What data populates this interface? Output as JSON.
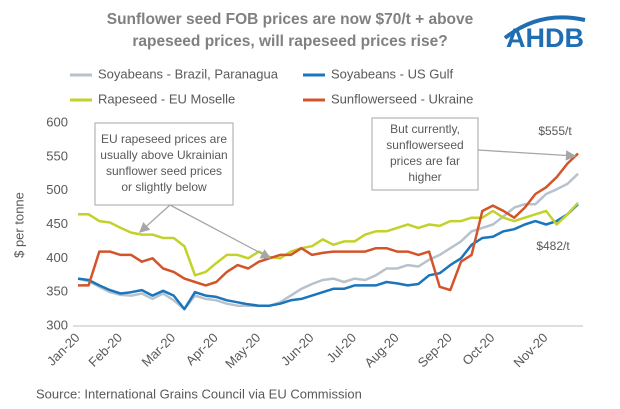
{
  "logo": "AHDB",
  "chart_data": {
    "type": "line",
    "title": [
      "Sunflower seed FOB prices are now $70/t + above",
      "rapeseed prices, will rapeseed prices rise?"
    ],
    "y_label": "$ per tonne",
    "source": "Source: International Grains Council via EU Commission",
    "categories": [
      "Jan-20",
      null,
      null,
      null,
      "Feb-20",
      null,
      null,
      null,
      null,
      "Mar-20",
      null,
      null,
      null,
      "Apr-20",
      null,
      null,
      null,
      "May-20",
      null,
      null,
      null,
      null,
      "Jun-20",
      null,
      null,
      null,
      "Jul-20",
      null,
      null,
      null,
      "Aug-20",
      null,
      null,
      null,
      null,
      "Sep-20",
      null,
      null,
      null,
      "Oct-20",
      null,
      null,
      null,
      null,
      "Nov-20",
      null,
      null,
      null
    ],
    "ylim": [
      300,
      600
    ],
    "yticks": [
      300,
      350,
      400,
      450,
      500,
      550,
      600
    ],
    "grid": false,
    "series": [
      {
        "name": "Soyabeans - Brazil, Paranagua",
        "color": "#b8c2cc",
        "values": [
          370,
          366,
          358,
          350,
          346,
          345,
          348,
          340,
          348,
          338,
          325,
          345,
          340,
          338,
          333,
          330,
          330,
          330,
          330,
          335,
          345,
          355,
          362,
          368,
          370,
          365,
          370,
          368,
          375,
          385,
          385,
          390,
          388,
          398,
          405,
          415,
          425,
          440,
          445,
          450,
          462,
          475,
          480,
          480,
          495,
          502,
          510,
          525
        ]
      },
      {
        "name": "Soyabeans - US Gulf",
        "color": "#1b75bb",
        "values": [
          370,
          368,
          360,
          353,
          348,
          350,
          353,
          345,
          352,
          345,
          325,
          350,
          345,
          343,
          338,
          335,
          332,
          330,
          330,
          333,
          338,
          340,
          345,
          350,
          355,
          355,
          360,
          360,
          360,
          365,
          363,
          360,
          362,
          375,
          378,
          390,
          400,
          420,
          430,
          432,
          440,
          443,
          450,
          455,
          450,
          455,
          465,
          480
        ]
      },
      {
        "name": "Rapeseed - EU Moselle",
        "color": "#c3d22a",
        "values": [
          465,
          465,
          455,
          453,
          445,
          438,
          435,
          435,
          430,
          430,
          418,
          375,
          380,
          393,
          405,
          405,
          400,
          410,
          402,
          400,
          410,
          415,
          418,
          428,
          420,
          425,
          425,
          435,
          440,
          440,
          445,
          450,
          445,
          450,
          448,
          455,
          455,
          460,
          460,
          470,
          460,
          455,
          460,
          465,
          470,
          450,
          465,
          482
        ]
      },
      {
        "name": "Sunflowerseed - Ukraine",
        "color": "#d4542a",
        "values": [
          360,
          360,
          410,
          410,
          405,
          405,
          395,
          400,
          385,
          380,
          370,
          365,
          360,
          365,
          380,
          390,
          385,
          395,
          400,
          405,
          405,
          415,
          405,
          408,
          410,
          410,
          410,
          410,
          415,
          415,
          410,
          410,
          405,
          410,
          358,
          353,
          395,
          405,
          470,
          478,
          470,
          460,
          475,
          495,
          505,
          520,
          540,
          555
        ]
      }
    ],
    "annotations": [
      {
        "lines": [
          "EU rapeseed prices are",
          "usually above Ukrainian",
          "sunflower seed prices",
          "or slightly below"
        ]
      },
      {
        "lines": [
          "But currently,",
          "sunflowerseed",
          "prices are far",
          "higher"
        ]
      },
      {
        "lines": [
          "$555/t"
        ]
      },
      {
        "lines": [
          "$482/t"
        ]
      }
    ]
  }
}
